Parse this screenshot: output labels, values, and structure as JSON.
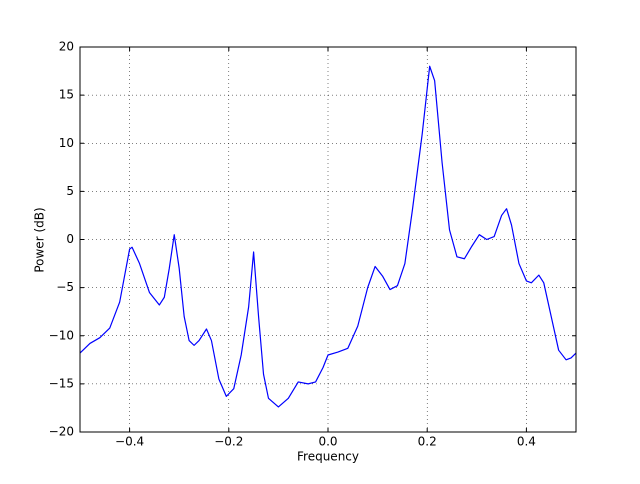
{
  "chart_data": {
    "type": "line",
    "xlabel": "Frequency",
    "ylabel": "Power (dB)",
    "x": [
      -0.5,
      -0.48,
      -0.46,
      -0.44,
      -0.42,
      -0.4,
      -0.395,
      -0.38,
      -0.36,
      -0.34,
      -0.33,
      -0.32,
      -0.31,
      -0.3,
      -0.29,
      -0.28,
      -0.27,
      -0.26,
      -0.245,
      -0.235,
      -0.22,
      -0.205,
      -0.19,
      -0.175,
      -0.16,
      -0.15,
      -0.14,
      -0.13,
      -0.12,
      -0.1,
      -0.08,
      -0.06,
      -0.04,
      -0.025,
      -0.01,
      0,
      0.02,
      0.04,
      0.06,
      0.08,
      0.095,
      0.11,
      0.125,
      0.14,
      0.155,
      0.17,
      0.19,
      0.205,
      0.215,
      0.23,
      0.245,
      0.26,
      0.275,
      0.29,
      0.305,
      0.32,
      0.335,
      0.35,
      0.36,
      0.37,
      0.385,
      0.4,
      0.41,
      0.425,
      0.435,
      0.45,
      0.465,
      0.48,
      0.49,
      0.5
    ],
    "values": [
      -11.8,
      -10.8,
      -10.2,
      -9.2,
      -6.5,
      -1.0,
      -0.8,
      -2.5,
      -5.5,
      -6.8,
      -6.0,
      -3,
      0.5,
      -3,
      -8,
      -10.5,
      -11,
      -10.5,
      -9.3,
      -10.5,
      -14.5,
      -16.3,
      -15.5,
      -12,
      -7,
      -1.3,
      -8,
      -14,
      -16.5,
      -17.4,
      -16.5,
      -14.8,
      -15,
      -14.8,
      -13.3,
      -12,
      -11.7,
      -11.3,
      -9,
      -5,
      -2.8,
      -3.8,
      -5.2,
      -4.8,
      -2.5,
      3,
      11,
      18,
      16.5,
      8,
      1,
      -1.8,
      -2,
      -0.7,
      0.5,
      0.0,
      0.3,
      2.5,
      3.2,
      1.5,
      -2.5,
      -4.3,
      -4.5,
      -3.7,
      -4.5,
      -8,
      -11.5,
      -12.5,
      -12.3,
      -11.8
    ],
    "color": "#0000ff",
    "xlim": [
      -0.5,
      0.5
    ],
    "xticks": [
      {
        "value": -0.4,
        "label": "−0.4"
      },
      {
        "value": -0.2,
        "label": "−0.2"
      },
      {
        "value": 0,
        "label": "0.0"
      },
      0.2,
      0.4
    ],
    "ylim": [
      -20,
      20
    ],
    "yticks": [
      {
        "value": -20,
        "label": "−20"
      },
      {
        "value": -15,
        "label": "−15"
      },
      {
        "value": -10,
        "label": "−10"
      },
      {
        "value": -5,
        "label": "−5"
      },
      0,
      5,
      10,
      15,
      20
    ],
    "grid": true
  }
}
